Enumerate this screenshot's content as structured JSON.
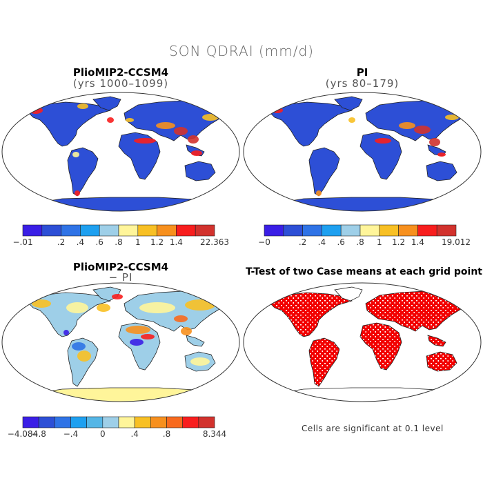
{
  "main_title": "SON QDRAI (mm/d)",
  "panels": [
    {
      "title": "PlioMIP2-CCSM4",
      "subtitle": "(yrs 1000–1099)",
      "colorbar": {
        "colors": [
          "#3a1ee6",
          "#2d4fd6",
          "#2f73e6",
          "#1ea0f0",
          "#9ecfe8",
          "#fff59a",
          "#f8c024",
          "#f7901e",
          "#f81e1e",
          "#d2322d"
        ],
        "labels": [
          "−.01",
          "",
          ".2",
          ".4",
          ".6",
          ".8",
          "1",
          "1.2",
          "1.4",
          "",
          "22.363"
        ]
      }
    },
    {
      "title": "PI",
      "subtitle": "(yrs 80–179)",
      "colorbar": {
        "colors": [
          "#3a1ee6",
          "#2d4fd6",
          "#2f73e6",
          "#1ea0f0",
          "#9ecfe8",
          "#fff59a",
          "#f8c024",
          "#f7901e",
          "#f81e1e",
          "#d2322d"
        ],
        "labels": [
          "−0",
          "",
          ".2",
          ".4",
          ".6",
          ".8",
          "1",
          "1.2",
          "1.4",
          "",
          "19.012"
        ]
      }
    },
    {
      "title": "PlioMIP2-CCSM4",
      "subtitle": "− PI",
      "colorbar": {
        "colors": [
          "#3a1ee6",
          "#2d4fd6",
          "#2f73e6",
          "#1ea0f0",
          "#55b6e6",
          "#9ecfe8",
          "#fff59a",
          "#f8c024",
          "#f7901e",
          "#f86a1e",
          "#f81e1e",
          "#d2322d"
        ],
        "labels": [
          "−4.084",
          "−.8",
          "",
          "−.4",
          "",
          "0",
          "",
          ".4",
          "",
          ".8",
          "",
          "",
          "8.344"
        ]
      }
    },
    {
      "title": "T-Test of two Case means at each grid point",
      "subtitle": "",
      "note": "Cells are significant at 0.1 level"
    }
  ]
}
